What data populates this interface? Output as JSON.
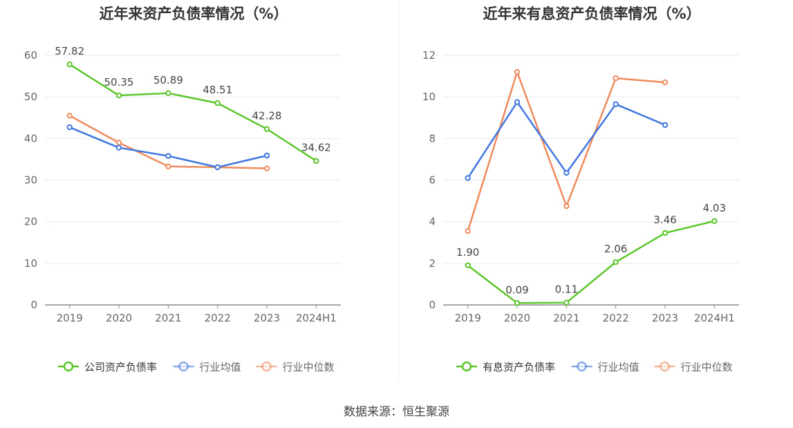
{
  "source": "数据来源：恒生聚源",
  "colors": {
    "company": "#5bc62a",
    "avg": "#3f76e0",
    "median": "#f08a5d",
    "grid": "#e6e9f0",
    "axis": "#666666",
    "label": "#444444"
  },
  "chart_data": [
    {
      "type": "line",
      "title": "近年来资产负债率情况（%）",
      "categories": [
        "2019",
        "2020",
        "2021",
        "2022",
        "2023",
        "2024H1"
      ],
      "ylim": [
        0,
        60
      ],
      "yticks": [
        0,
        10,
        20,
        30,
        40,
        50,
        60
      ],
      "grid": true,
      "legend_position": "bottom-center",
      "series": [
        {
          "name": "公司资产负债率",
          "color": "#5bc62a",
          "show_labels": true,
          "values": [
            57.82,
            50.35,
            50.89,
            48.51,
            42.28,
            34.62
          ]
        },
        {
          "name": "行业均值",
          "color": "#3f76e0",
          "show_labels": false,
          "values": [
            42.7,
            37.8,
            35.8,
            33.1,
            35.9,
            null
          ]
        },
        {
          "name": "行业中位数",
          "color": "#f08a5d",
          "show_labels": false,
          "values": [
            45.5,
            39.0,
            33.3,
            33.1,
            32.8,
            null
          ]
        }
      ]
    },
    {
      "type": "line",
      "title": "近年来有息资产负债率情况（%）",
      "categories": [
        "2019",
        "2020",
        "2021",
        "2022",
        "2023",
        "2024H1"
      ],
      "ylim": [
        0,
        12
      ],
      "yticks": [
        0,
        2,
        4,
        6,
        8,
        10,
        12
      ],
      "grid": true,
      "legend_position": "bottom-center",
      "series": [
        {
          "name": "有息资产负债率",
          "color": "#5bc62a",
          "show_labels": true,
          "values": [
            1.9,
            0.09,
            0.11,
            2.06,
            3.46,
            4.03
          ]
        },
        {
          "name": "行业均值",
          "color": "#3f76e0",
          "show_labels": false,
          "values": [
            6.1,
            9.75,
            6.35,
            9.65,
            8.65,
            null
          ]
        },
        {
          "name": "行业中位数",
          "color": "#f08a5d",
          "show_labels": false,
          "values": [
            3.55,
            11.2,
            4.75,
            10.9,
            10.7,
            null
          ]
        }
      ]
    }
  ]
}
